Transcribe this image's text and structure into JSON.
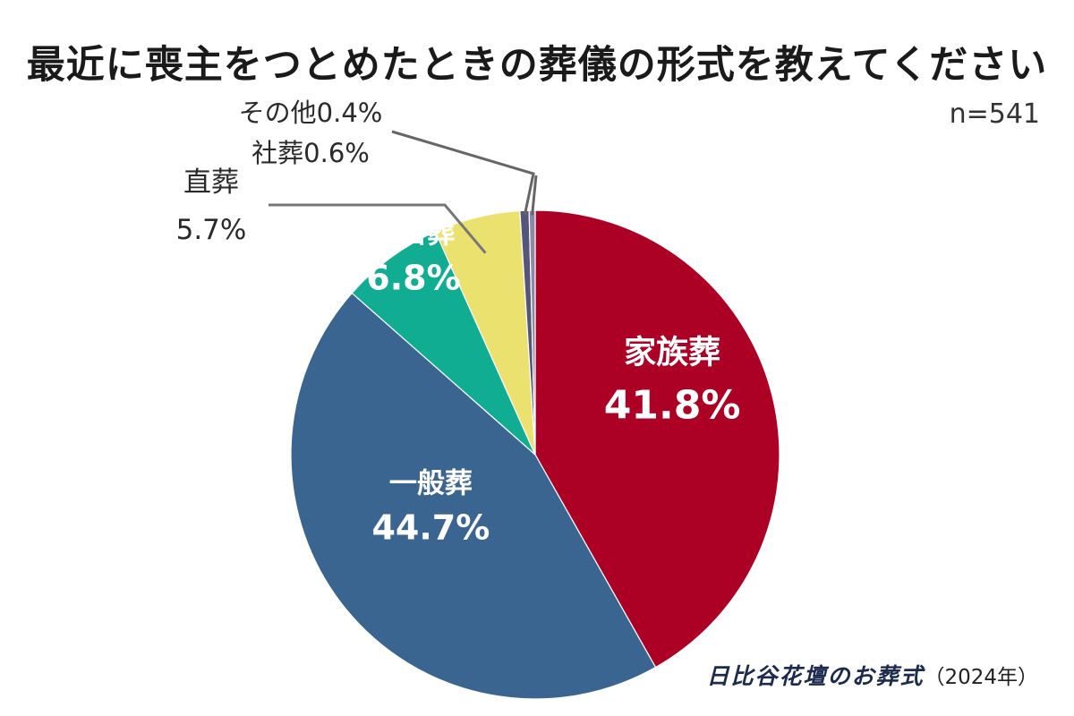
{
  "title": "最近に喪主をつとめたときの葬儀の形式を教えてください",
  "sample_size": "n=541",
  "source": {
    "brand": "日比谷花壇のお葬式",
    "year": "（2024年）"
  },
  "chart_data": {
    "type": "pie",
    "title": "最近に喪主をつとめたときの葬儀の形式を教えてください",
    "start": "12 o'clock",
    "direction": "clockwise",
    "slices": [
      {
        "label": "家族葬",
        "value": 41.8,
        "value_label": "41.8%",
        "color": "#ac0025",
        "label_position": "inside"
      },
      {
        "label": "一般葬",
        "value": 44.7,
        "value_label": "44.7%",
        "color": "#3a6591",
        "label_position": "inside"
      },
      {
        "label": "一日葬",
        "value": 6.8,
        "value_label": "6.8%",
        "color": "#10ad92",
        "label_position": "inside"
      },
      {
        "label": "直葬",
        "value": 5.7,
        "value_label": "5.7%",
        "color": "#ebe16f",
        "label_position": "outside"
      },
      {
        "label": "社葬",
        "value": 0.6,
        "value_label": "0.6%",
        "color": "#55547a",
        "label_position": "outside"
      },
      {
        "label": "その他",
        "value": 0.4,
        "value_label": "0.4%",
        "color": "#8e8aa6",
        "label_position": "outside"
      }
    ]
  }
}
